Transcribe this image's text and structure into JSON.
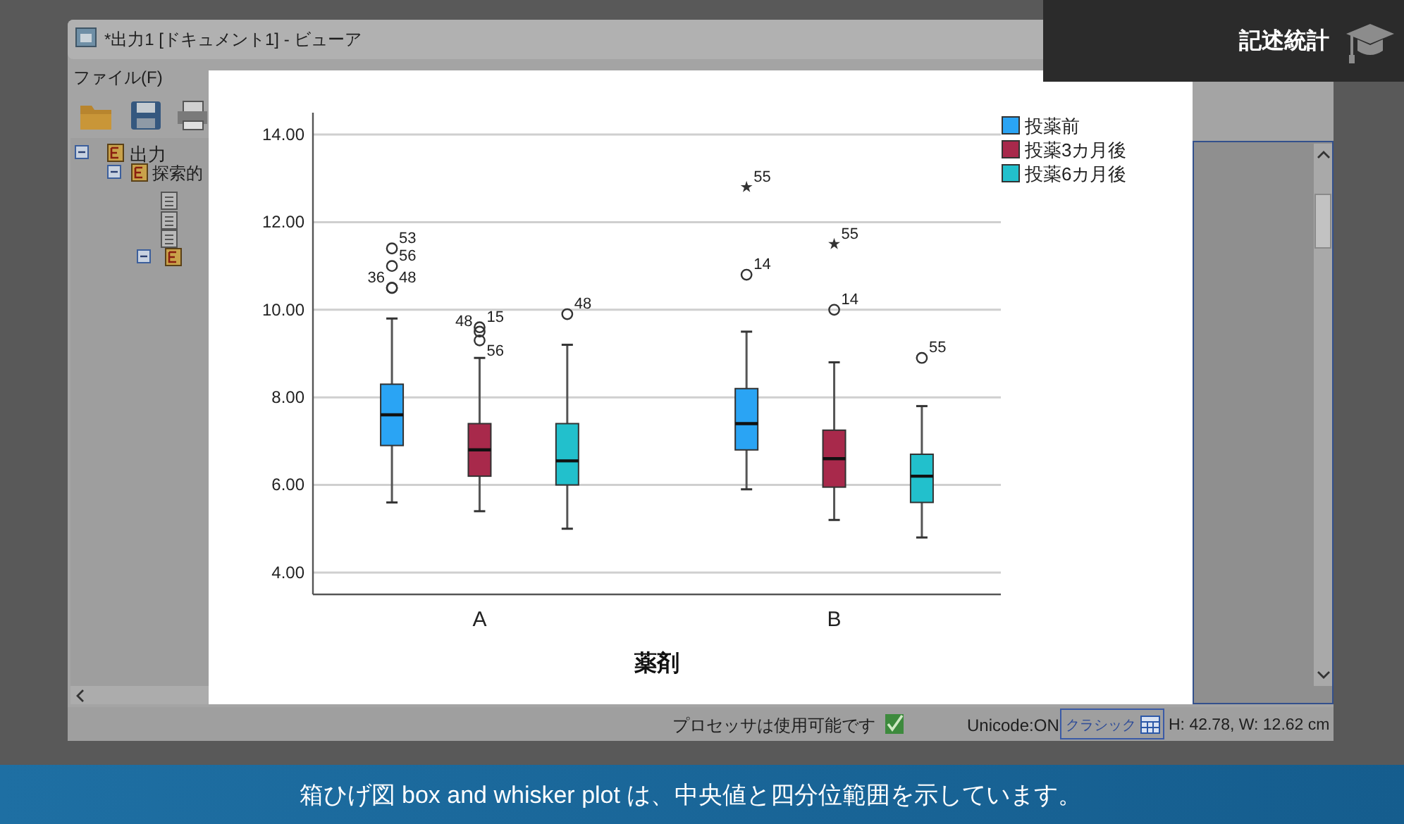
{
  "chart_data": {
    "type": "box",
    "categories": [
      "A",
      "B"
    ],
    "xlabel": "薬剤",
    "series": [
      {
        "name": "投薬前",
        "color": "#2aa4f4",
        "boxes": [
          {
            "low": 5.6,
            "q1": 6.9,
            "median": 7.6,
            "q3": 8.3,
            "high": 9.8,
            "outliers": [
              11.4,
              11.0,
              10.5,
              10.5
            ]
          },
          {
            "low": 5.9,
            "q1": 6.8,
            "median": 7.4,
            "q3": 8.2,
            "high": 9.5,
            "outliers": [
              12.8,
              10.8
            ]
          }
        ]
      },
      {
        "name": "投薬3カ月後",
        "color": "#a8294b",
        "boxes": [
          {
            "low": 5.4,
            "q1": 6.2,
            "median": 6.8,
            "q3": 7.4,
            "high": 8.9,
            "outliers": [
              9.6,
              9.5,
              9.3
            ]
          },
          {
            "low": 5.2,
            "q1": 5.95,
            "median": 6.6,
            "q3": 7.25,
            "high": 8.8,
            "outliers": [
              11.5,
              10.0
            ]
          }
        ]
      },
      {
        "name": "投薬6カ月後",
        "color": "#22c0cc",
        "boxes": [
          {
            "low": 5.0,
            "q1": 6.0,
            "median": 6.55,
            "q3": 7.4,
            "high": 9.2,
            "outliers": [
              9.9
            ]
          },
          {
            "low": 4.8,
            "q1": 5.6,
            "median": 6.2,
            "q3": 6.7,
            "high": 7.8,
            "outliers": [
              8.9
            ]
          }
        ]
      }
    ],
    "ylim": [
      3.5,
      14.5
    ],
    "yticks": [
      {
        "value": 4,
        "label": "4.00"
      },
      {
        "value": 6,
        "label": "6.00"
      },
      {
        "value": 8,
        "label": "8.00"
      },
      {
        "value": 10,
        "label": "10.00"
      },
      {
        "value": 12,
        "label": "12.00"
      },
      {
        "value": 14,
        "label": "14.00"
      }
    ],
    "grid": "y",
    "legend": "top right",
    "annotations": [
      "記述統計",
      "*出力1 [ドキュメント1] - ビューア",
      "ファイル(F)",
      "出力",
      "探索的",
      "プロセッサは使用可能です",
      "Unicode:ON",
      "クラシック",
      "H: 42.78, W: 12.62 cm",
      "箱ひげ図 box and whisker plot は、中央値と四分位範囲を示しています。",
      "53",
      "56",
      "48",
      "36",
      "55",
      "14",
      "15",
      "48",
      "56",
      "55",
      "14",
      "48",
      "55"
    ]
  }
}
